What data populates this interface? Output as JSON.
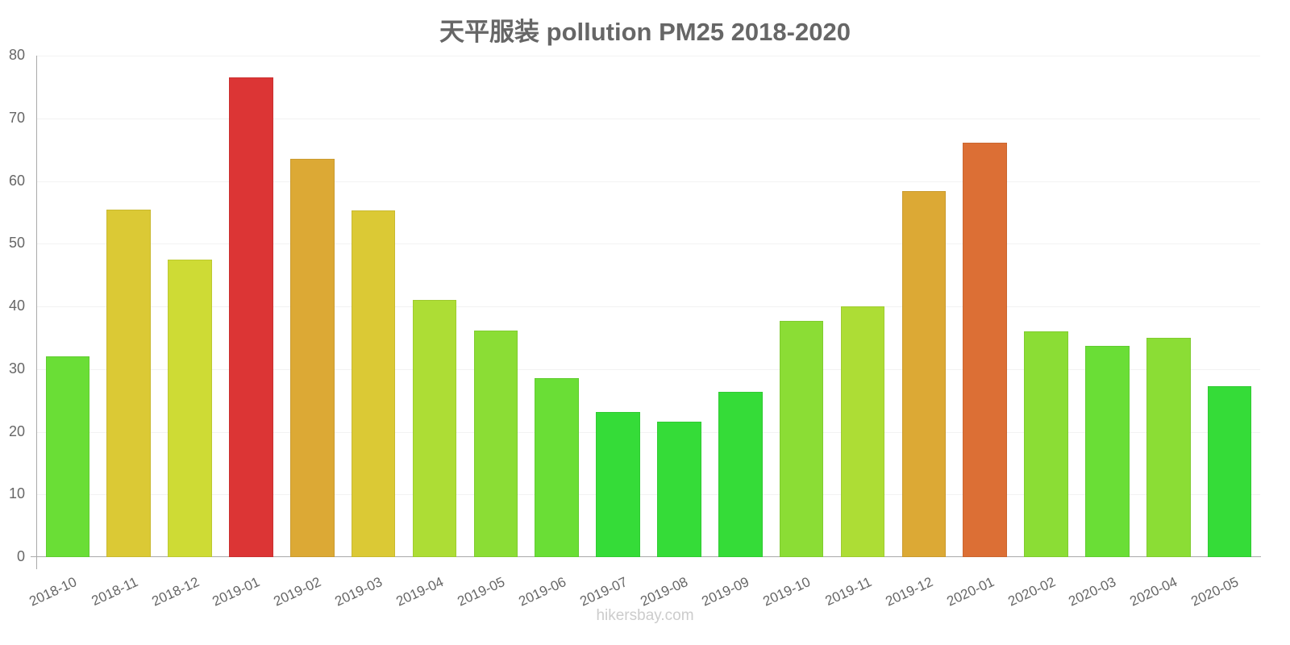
{
  "chart_data": {
    "type": "bar",
    "title": "天平服装 pollution PM25 2018-2020",
    "xlabel": "",
    "ylabel": "",
    "ylim": [
      0,
      80
    ],
    "yticks": [
      0,
      10,
      20,
      30,
      40,
      50,
      60,
      70,
      80
    ],
    "grid": true,
    "legend": null,
    "categories": [
      "2018-10",
      "2018-11",
      "2018-12",
      "2019-01",
      "2019-02",
      "2019-03",
      "2019-04",
      "2019-05",
      "2019-06",
      "2019-07",
      "2019-08",
      "2019-09",
      "2019-10",
      "2019-11",
      "2019-12",
      "2020-01",
      "2020-02",
      "2020-03",
      "2020-04",
      "2020-05"
    ],
    "values": [
      32.0,
      55.4,
      47.5,
      76.5,
      63.5,
      55.3,
      41.0,
      36.1,
      28.6,
      23.2,
      21.6,
      26.4,
      37.7,
      40.0,
      58.4,
      66.1,
      36.0,
      33.7,
      35.0,
      27.3
    ],
    "colors": [
      "#6ade36",
      "#dbc935",
      "#cedb35",
      "#dc3535",
      "#dca935",
      "#dbc935",
      "#addd35",
      "#8bdd35",
      "#6ade36",
      "#35dc38",
      "#35dc38",
      "#35dc38",
      "#8bdd35",
      "#addd35",
      "#dca935",
      "#dc6f35",
      "#8bdd35",
      "#6ade36",
      "#8bdd35",
      "#35dc38"
    ]
  },
  "watermark": "hikersbay.com"
}
